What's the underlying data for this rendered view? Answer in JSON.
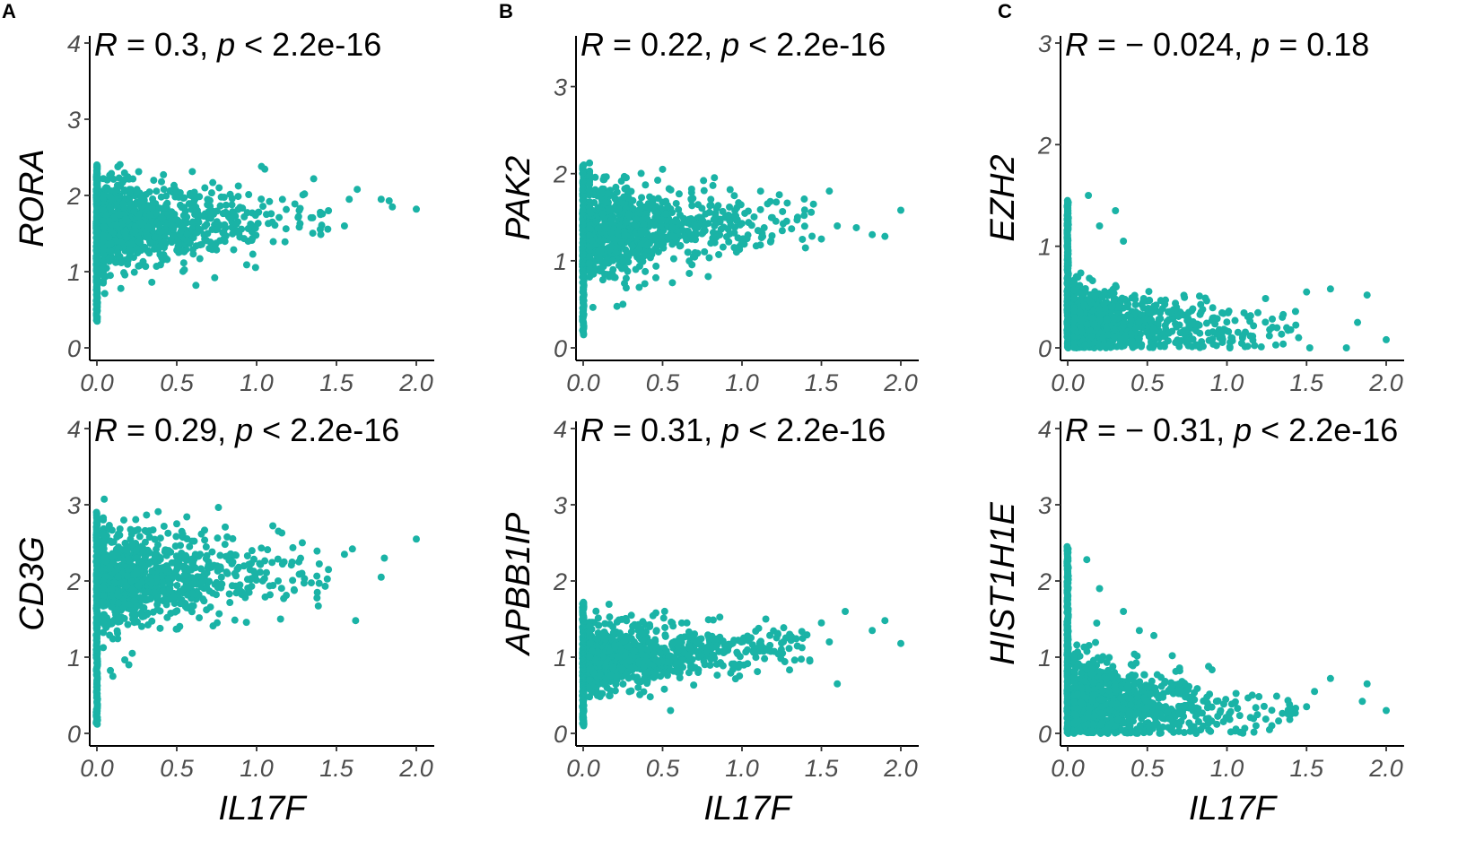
{
  "figure_labels": {
    "panels": [
      "A",
      "B",
      "C"
    ]
  },
  "colors": {
    "point": "#1ab3a6",
    "axis": "#000000",
    "tick_text": "#4d4d4d"
  },
  "chart_data": [
    {
      "type": "scatter",
      "panel": "A",
      "xlabel": "",
      "ylabel": "RORA",
      "stat_r": "0.3",
      "stat_p": "< 2.2e-16",
      "xlim": [
        0,
        2.0
      ],
      "ylim": [
        0,
        4
      ],
      "xticks": [
        "0.0",
        "0.5",
        "1.0",
        "1.5",
        "2.0"
      ],
      "yticks": [
        "0",
        "1",
        "2",
        "3",
        "4"
      ],
      "cloud": {
        "center_y_start": 1.58,
        "center_y_slope": 0.12,
        "spread": 0.3,
        "decay": 1.4,
        "n": 900,
        "zero_col_min": 0.35,
        "zero_col_max": 2.4
      },
      "points": [
        {
          "x": 2.0,
          "y": 1.82
        },
        {
          "x": 1.85,
          "y": 1.85
        },
        {
          "x": 1.83,
          "y": 1.93
        },
        {
          "x": 1.78,
          "y": 1.95
        },
        {
          "x": 1.63,
          "y": 2.08
        },
        {
          "x": 1.58,
          "y": 1.95
        },
        {
          "x": 1.55,
          "y": 1.6
        },
        {
          "x": 1.45,
          "y": 1.8
        },
        {
          "x": 1.4,
          "y": 1.75
        },
        {
          "x": 1.3,
          "y": 2.02
        },
        {
          "x": 0.62,
          "y": 0.82
        },
        {
          "x": 0.15,
          "y": 0.78
        }
      ]
    },
    {
      "type": "scatter",
      "panel": "A",
      "xlabel": "IL17F",
      "ylabel": "CD3G",
      "stat_r": "0.29",
      "stat_p": "< 2.2e-16",
      "xlim": [
        0,
        2.0
      ],
      "ylim": [
        0,
        4
      ],
      "xticks": [
        "0.0",
        "0.5",
        "1.0",
        "1.5",
        "2.0"
      ],
      "yticks": [
        "0",
        "1",
        "2",
        "3",
        "4"
      ],
      "cloud": {
        "center_y_start": 2.0,
        "center_y_slope": 0.12,
        "spread": 0.33,
        "decay": 1.4,
        "n": 900,
        "zero_col_min": 0.12,
        "zero_col_max": 2.9
      },
      "points": [
        {
          "x": 2.0,
          "y": 2.55
        },
        {
          "x": 1.8,
          "y": 2.3
        },
        {
          "x": 1.78,
          "y": 2.05
        },
        {
          "x": 1.6,
          "y": 2.42
        },
        {
          "x": 1.62,
          "y": 1.48
        },
        {
          "x": 1.55,
          "y": 2.35
        },
        {
          "x": 1.45,
          "y": 2.15
        },
        {
          "x": 1.38,
          "y": 1.85
        },
        {
          "x": 1.15,
          "y": 1.5
        },
        {
          "x": 0.5,
          "y": 2.75
        },
        {
          "x": 0.1,
          "y": 0.75
        },
        {
          "x": 0.2,
          "y": 0.9
        }
      ]
    },
    {
      "type": "scatter",
      "panel": "B",
      "xlabel": "",
      "ylabel": "PAK2",
      "stat_r": "0.22",
      "stat_p": "< 2.2e-16",
      "xlim": [
        0,
        2.0
      ],
      "ylim": [
        0,
        3.5
      ],
      "xticks": [
        "0.0",
        "0.5",
        "1.0",
        "1.5",
        "2.0"
      ],
      "yticks": [
        "0",
        "1",
        "2",
        "3"
      ],
      "cloud": {
        "center_y_start": 1.35,
        "center_y_slope": 0.08,
        "spread": 0.28,
        "decay": 1.4,
        "n": 900,
        "zero_col_min": 0.15,
        "zero_col_max": 2.1
      },
      "points": [
        {
          "x": 2.0,
          "y": 1.58
        },
        {
          "x": 1.9,
          "y": 1.28
        },
        {
          "x": 1.82,
          "y": 1.3
        },
        {
          "x": 1.72,
          "y": 1.38
        },
        {
          "x": 1.6,
          "y": 1.4
        },
        {
          "x": 1.55,
          "y": 1.8
        },
        {
          "x": 1.5,
          "y": 1.25
        },
        {
          "x": 1.45,
          "y": 1.65
        },
        {
          "x": 1.35,
          "y": 1.5
        },
        {
          "x": 0.25,
          "y": 0.5
        },
        {
          "x": 0.5,
          "y": 2.05
        }
      ]
    },
    {
      "type": "scatter",
      "panel": "B",
      "xlabel": "IL17F",
      "ylabel": "APBB1IP",
      "stat_r": "0.31",
      "stat_p": "< 2.2e-16",
      "xlim": [
        0,
        2.0
      ],
      "ylim": [
        0,
        4
      ],
      "xticks": [
        "0.0",
        "0.5",
        "1.0",
        "1.5",
        "2.0"
      ],
      "yticks": [
        "0",
        "1",
        "2",
        "3",
        "4"
      ],
      "cloud": {
        "center_y_start": 0.98,
        "center_y_slope": 0.1,
        "spread": 0.22,
        "decay": 1.4,
        "n": 900,
        "zero_col_min": 0.1,
        "zero_col_max": 1.72
      },
      "points": [
        {
          "x": 2.0,
          "y": 1.18
        },
        {
          "x": 1.9,
          "y": 1.48
        },
        {
          "x": 1.82,
          "y": 1.35
        },
        {
          "x": 1.65,
          "y": 1.6
        },
        {
          "x": 1.6,
          "y": 0.65
        },
        {
          "x": 1.55,
          "y": 1.2
        },
        {
          "x": 1.5,
          "y": 1.45
        },
        {
          "x": 1.3,
          "y": 1.3
        },
        {
          "x": 1.15,
          "y": 1.5
        },
        {
          "x": 0.55,
          "y": 0.3
        }
      ]
    },
    {
      "type": "scatter",
      "panel": "C",
      "xlabel": "",
      "ylabel": "EZH2",
      "stat_r": "− 0.024",
      "stat_p": "= 0.18",
      "xlim": [
        0,
        2.0
      ],
      "ylim": [
        0,
        3.0
      ],
      "xticks": [
        "0.0",
        "0.5",
        "1.0",
        "1.5",
        "2.0"
      ],
      "yticks": [
        "0",
        "1",
        "2",
        "3"
      ],
      "cloud": {
        "center_y_start": 0.25,
        "center_y_slope": -0.05,
        "spread": 0.18,
        "decay": 1.5,
        "n": 900,
        "zero_col_min": 0.0,
        "zero_col_max": 1.45
      },
      "points": [
        {
          "x": 2.0,
          "y": 0.08
        },
        {
          "x": 1.88,
          "y": 0.52
        },
        {
          "x": 1.82,
          "y": 0.25
        },
        {
          "x": 1.75,
          "y": 0.0
        },
        {
          "x": 1.65,
          "y": 0.58
        },
        {
          "x": 1.52,
          "y": 0.0
        },
        {
          "x": 1.5,
          "y": 0.55
        },
        {
          "x": 1.45,
          "y": 0.1
        },
        {
          "x": 0.13,
          "y": 1.5
        },
        {
          "x": 0.3,
          "y": 1.35
        },
        {
          "x": 0.35,
          "y": 1.05
        },
        {
          "x": 0.2,
          "y": 1.2
        }
      ]
    },
    {
      "type": "scatter",
      "panel": "C",
      "xlabel": "IL17F",
      "ylabel": "HIST1H1E",
      "stat_r": "− 0.31",
      "stat_p": "< 2.2e-16",
      "xlim": [
        0,
        2.0
      ],
      "ylim": [
        0,
        4
      ],
      "xticks": [
        "0.0",
        "0.5",
        "1.0",
        "1.5",
        "2.0"
      ],
      "yticks": [
        "0",
        "1",
        "2",
        "3",
        "4"
      ],
      "cloud": {
        "center_y_start": 0.45,
        "center_y_slope": -0.15,
        "spread": 0.3,
        "decay": 1.5,
        "n": 900,
        "zero_col_min": 0.0,
        "zero_col_max": 2.45
      },
      "points": [
        {
          "x": 2.0,
          "y": 0.3
        },
        {
          "x": 1.88,
          "y": 0.65
        },
        {
          "x": 1.85,
          "y": 0.42
        },
        {
          "x": 1.65,
          "y": 0.72
        },
        {
          "x": 1.55,
          "y": 0.55
        },
        {
          "x": 1.5,
          "y": 0.35
        },
        {
          "x": 1.4,
          "y": 0.25
        },
        {
          "x": 0.12,
          "y": 2.28
        },
        {
          "x": 0.2,
          "y": 1.9
        },
        {
          "x": 0.35,
          "y": 1.6
        },
        {
          "x": 0.45,
          "y": 1.35
        }
      ]
    }
  ]
}
